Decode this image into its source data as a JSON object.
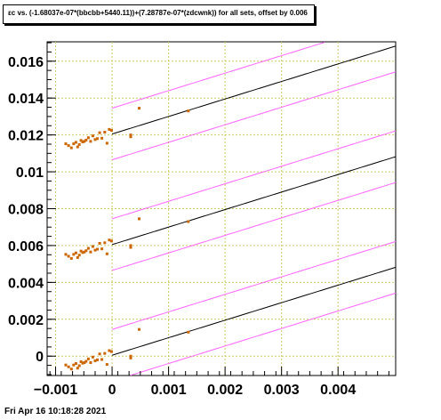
{
  "title": "εc vs. (-1.68037e-07*(bbcbb+5440.11))+(7.28787e-07*(zdcwnk)) for all sets, offset by 0.006",
  "footer": "Fri Apr 16 10:18:28 2021",
  "chart_data": {
    "type": "scatter",
    "xlim": [
      -0.00115,
      0.00502
    ],
    "ylim": [
      -0.00105,
      0.01705
    ],
    "grid": true,
    "xticks": [
      {
        "value": -0.001,
        "label": "−0.001"
      },
      {
        "value": 0,
        "label": "0"
      },
      {
        "value": 0.001,
        "label": "0.001"
      },
      {
        "value": 0.002,
        "label": "0.002"
      },
      {
        "value": 0.003,
        "label": "0.003"
      },
      {
        "value": 0.004,
        "label": "0.004"
      }
    ],
    "yticks": [
      {
        "value": 0,
        "label": "0"
      },
      {
        "value": 0.002,
        "label": "0.002"
      },
      {
        "value": 0.004,
        "label": "0.004"
      },
      {
        "value": 0.006,
        "label": "0.006"
      },
      {
        "value": 0.008,
        "label": "0.008"
      },
      {
        "value": 0.01,
        "label": "0.01"
      },
      {
        "value": 0.012,
        "label": "0.012"
      },
      {
        "value": 0.014,
        "label": "0.014"
      },
      {
        "value": 0.016,
        "label": "0.016"
      }
    ],
    "offset": 0.006,
    "sets": 3,
    "fit": {
      "slope": 0.95,
      "intercept": 5e-05,
      "band": 0.0014
    },
    "colors": {
      "points": "#cc6600",
      "fit": "#000000",
      "band": "#ff66ff",
      "grid": "#cccc66"
    },
    "points": [
      [
        -0.00082,
        -0.00048
      ],
      [
        -0.00077,
        -0.00058
      ],
      [
        -0.00072,
        -0.0007
      ],
      [
        -0.00068,
        -0.00048
      ],
      [
        -0.00064,
        -0.0004
      ],
      [
        -0.00061,
        -0.00065
      ],
      [
        -0.00058,
        -0.00052
      ],
      [
        -0.00055,
        -0.0003
      ],
      [
        -0.00052,
        -0.00038
      ],
      [
        -0.00049,
        -0.00035
      ],
      [
        -0.00046,
        -0.00028
      ],
      [
        -0.00042,
        -0.00015
      ],
      [
        -0.00038,
        -0.00035
      ],
      [
        -0.00034,
        -5e-05
      ],
      [
        -0.0003,
        -0.00025
      ],
      [
        -0.00026,
        -0.0002
      ],
      [
        -0.00022,
        0.00012
      ],
      [
        -0.00018,
        -0.00018
      ],
      [
        -0.00013,
        0.00015
      ],
      [
        -9e-05,
        -0.00045
      ],
      [
        -5e-05,
        0.0003
      ],
      [
        -1e-05,
        0.00025
      ],
      [
        0.00033,
        0.0
      ],
      [
        0.00033,
        -0.0001
      ],
      [
        0.00048,
        0.00145
      ],
      [
        0.00135,
        0.0013
      ]
    ]
  }
}
